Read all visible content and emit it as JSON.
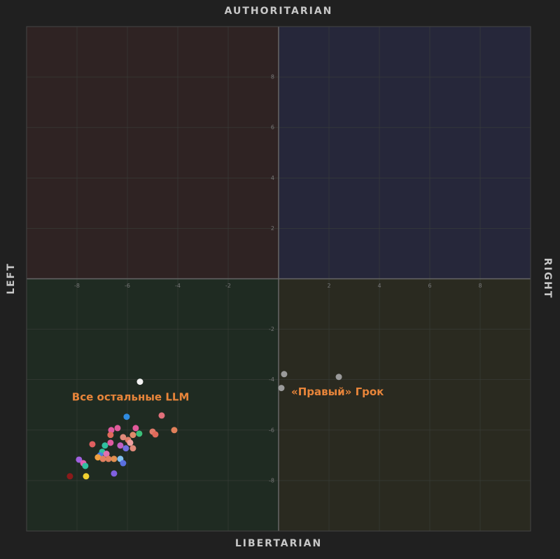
{
  "chart_data": {
    "type": "scatter",
    "top_label": "AUTHORITARIAN",
    "bottom_label": "LIBERTARIAN",
    "left_label": "LEFT",
    "right_label": "RIGHT",
    "annotations": [
      {
        "text": "Все остальные LLM",
        "x": -8.2,
        "y": -4.7
      },
      {
        "text": "«Правый» Грок",
        "x": 0.5,
        "y": -4.5
      }
    ],
    "annotation_color": "#e8853a",
    "quadrant_colors": [
      "#2f2323",
      "#26273a",
      "#1f2b22",
      "#2a2a20"
    ],
    "xlim": [
      -10,
      10
    ],
    "ylim": [
      -10,
      10
    ],
    "xticks": [
      -8,
      -6,
      -4,
      -2,
      2,
      4,
      6,
      8
    ],
    "yticks": [
      -8,
      -6,
      -4,
      -2,
      2,
      4,
      6,
      8
    ],
    "grid": true,
    "x": [
      0.22,
      0.11,
      2.39,
      -5.5,
      -6.03,
      -4.64,
      -4.14,
      -5.0,
      -4.89,
      -5.67,
      -5.53,
      -6.39,
      -6.64,
      -6.67,
      -5.78,
      -6.17,
      -5.97,
      -6.67,
      -6.28,
      -5.89,
      -5.78,
      -6.06,
      -7.39,
      -6.89,
      -7.0,
      -6.83,
      -7.08,
      -7.17,
      -6.97,
      -6.75,
      -6.53,
      -6.28,
      -6.17,
      -7.92,
      -7.75,
      -7.67,
      -6.53,
      -7.64,
      -8.28
    ],
    "y": [
      -3.78,
      -4.33,
      -3.89,
      -4.08,
      -5.47,
      -5.42,
      -6.0,
      -6.06,
      -6.17,
      -5.92,
      -6.14,
      -5.92,
      -6.0,
      -6.19,
      -6.19,
      -6.28,
      -6.39,
      -6.5,
      -6.61,
      -6.5,
      -6.72,
      -6.72,
      -6.56,
      -6.61,
      -6.86,
      -6.94,
      -7.0,
      -7.08,
      -7.14,
      -7.14,
      -7.14,
      -7.14,
      -7.31,
      -7.17,
      -7.31,
      -7.42,
      -7.72,
      -7.83,
      -7.83
    ],
    "colors": [
      "#9a9a9a",
      "#9a9a9a",
      "#9a9a9a",
      "#f2f2f2",
      "#2f8be0",
      "#e0707a",
      "#e0805a",
      "#e07a6a",
      "#e06a5a",
      "#e05a9a",
      "#3cc07a",
      "#e05a9a",
      "#e05aa0",
      "#e06a5a",
      "#e08a6a",
      "#e08a7a",
      "#e0806a",
      "#e05aa0",
      "#c060c0",
      "#f0a0a0",
      "#e08a7a",
      "#7070e0",
      "#e06060",
      "#30c0a0",
      "#30c0a0",
      "#e070b0",
      "#4a80e0",
      "#f0a040",
      "#e08060",
      "#e08060",
      "#e09050",
      "#80c0f0",
      "#5a70e0",
      "#a060e0",
      "#e060b0",
      "#30c0a0",
      "#8060e0",
      "#f0d030",
      "#8a1a1a"
    ]
  }
}
